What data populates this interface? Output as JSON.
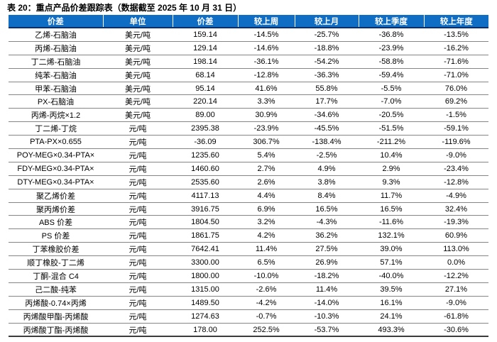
{
  "title": "表 20：重点产品价差跟踪表（数据截至 2025 年 10 月 31 日）",
  "colors": {
    "header_bg": "#0f6dc4",
    "header_text": "#ffffff",
    "header_bottom_border": "#0a2e66",
    "row_divider": "#858585",
    "body_text": "#000000"
  },
  "table": {
    "columns": [
      "价差",
      "单位",
      "价差",
      "较上周",
      "较上月",
      "较上季度",
      "较上年度"
    ],
    "rows": [
      [
        "乙烯-石脑油",
        "美元/吨",
        "159.14",
        "-14.5%",
        "-25.7%",
        "-36.8%",
        "-13.5%"
      ],
      [
        "丙烯-石脑油",
        "美元/吨",
        "129.14",
        "-14.6%",
        "-18.8%",
        "-23.9%",
        "-16.2%"
      ],
      [
        "丁二烯-石脑油",
        "美元/吨",
        "198.14",
        "-36.1%",
        "-54.2%",
        "-58.8%",
        "-71.6%"
      ],
      [
        "纯苯-石脑油",
        "美元/吨",
        "68.14",
        "-12.8%",
        "-36.3%",
        "-59.4%",
        "-71.0%"
      ],
      [
        "甲苯-石脑油",
        "美元/吨",
        "95.14",
        "41.6%",
        "55.8%",
        "-5.5%",
        "76.0%"
      ],
      [
        "PX-石脑油",
        "美元/吨",
        "220.14",
        "3.3%",
        "17.7%",
        "-7.0%",
        "69.2%"
      ],
      [
        "丙烯-丙烷×1.2",
        "美元/吨",
        "89.00",
        "30.9%",
        "-34.6%",
        "-20.5%",
        "-1.5%"
      ],
      [
        "丁二烯-丁烷",
        "元/吨",
        "2395.38",
        "-23.9%",
        "-45.5%",
        "-51.5%",
        "-59.1%"
      ],
      [
        "PTA-PX×0.655",
        "元/吨",
        "-36.09",
        "306.7%",
        "-138.4%",
        "-211.2%",
        "-119.6%"
      ],
      [
        "POY-MEG×0.34-PTA×",
        "元/吨",
        "1235.60",
        "5.4%",
        "-2.5%",
        "10.4%",
        "-9.0%"
      ],
      [
        "FDY-MEG×0.34-PTA×",
        "元/吨",
        "1460.60",
        "2.7%",
        "4.9%",
        "2.9%",
        "-23.4%"
      ],
      [
        "DTY-MEG×0.34-PTA×",
        "元/吨",
        "2535.60",
        "2.6%",
        "3.8%",
        "9.3%",
        "-12.8%"
      ],
      [
        "聚乙烯价差",
        "元/吨",
        "4117.13",
        "4.4%",
        "8.4%",
        "11.7%",
        "-4.9%"
      ],
      [
        "聚丙烯价差",
        "元/吨",
        "3916.75",
        "6.9%",
        "16.5%",
        "16.5%",
        "32.4%"
      ],
      [
        "ABS 价差",
        "元/吨",
        "1804.50",
        "3.2%",
        "-4.3%",
        "-11.6%",
        "-19.3%"
      ],
      [
        "PS 价差",
        "元/吨",
        "1861.75",
        "4.2%",
        "36.2%",
        "132.1%",
        "60.9%"
      ],
      [
        "丁苯橡胶价差",
        "元/吨",
        "7642.41",
        "11.4%",
        "27.5%",
        "39.0%",
        "113.0%"
      ],
      [
        "顺丁橡胶-丁二烯",
        "元/吨",
        "3300.00",
        "6.5%",
        "26.9%",
        "57.1%",
        "0.0%"
      ],
      [
        "丁酮-混合 C4",
        "元/吨",
        "1800.00",
        "-10.0%",
        "-18.2%",
        "-40.0%",
        "-12.2%"
      ],
      [
        "己二酸-纯苯",
        "元/吨",
        "1315.00",
        "-2.6%",
        "11.4%",
        "39.5%",
        "27.1%"
      ],
      [
        "丙烯酸-0.74×丙烯",
        "元/吨",
        "1489.50",
        "-4.2%",
        "-14.0%",
        "16.1%",
        "-9.0%"
      ],
      [
        "丙烯酸甲酯-丙烯酸",
        "元/吨",
        "1274.63",
        "-0.7%",
        "-10.3%",
        "24.1%",
        "-61.8%"
      ],
      [
        "丙烯酸丁酯-丙烯酸",
        "元/吨",
        "178.00",
        "252.5%",
        "-53.7%",
        "493.3%",
        "-30.6%"
      ]
    ]
  }
}
